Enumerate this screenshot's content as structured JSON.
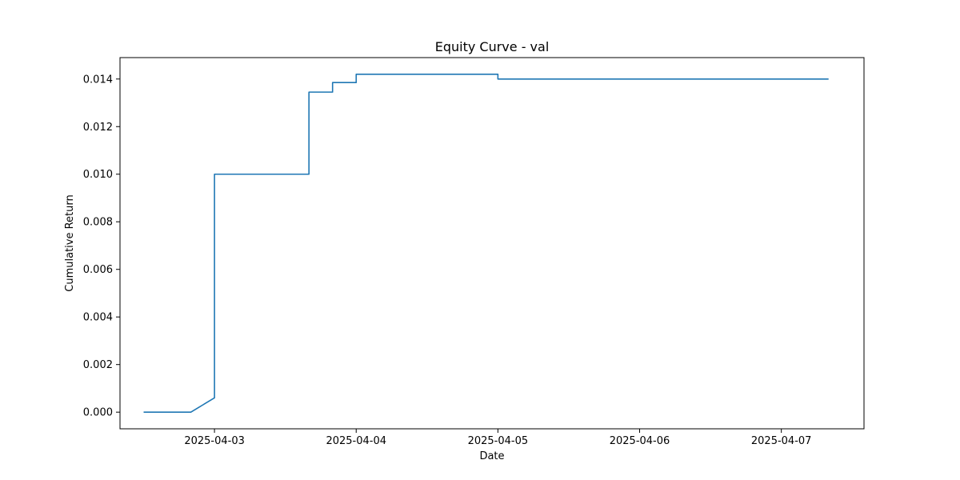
{
  "chart_data": {
    "type": "line",
    "title": "Equity Curve - val",
    "xlabel": "Date",
    "ylabel": "Cumulative Return",
    "x_tick_labels": [
      "2025-04-03",
      "2025-04-04",
      "2025-04-05",
      "2025-04-06",
      "2025-04-07"
    ],
    "y_tick_labels": [
      "0.000",
      "0.002",
      "0.004",
      "0.006",
      "0.008",
      "0.010",
      "0.012",
      "0.014"
    ],
    "x_ticks": [
      "2025-04-03T00:00",
      "2025-04-04T00:00",
      "2025-04-05T00:00",
      "2025-04-06T00:00",
      "2025-04-07T00:00"
    ],
    "y_ticks": [
      0.0,
      0.002,
      0.004,
      0.006,
      0.008,
      0.01,
      0.012,
      0.014
    ],
    "xlim": [
      "2025-04-02T08:00",
      "2025-04-07T14:00"
    ],
    "ylim": [
      -0.0007,
      0.0149
    ],
    "grid": false,
    "series": [
      {
        "color": "#1f77b4",
        "x": [
          "2025-04-02T12:00",
          "2025-04-02T20:00",
          "2025-04-03T00:00",
          "2025-04-03T00:00",
          "2025-04-03T04:00",
          "2025-04-03T08:00",
          "2025-04-03T12:00",
          "2025-04-03T16:00",
          "2025-04-03T16:00",
          "2025-04-03T20:00",
          "2025-04-03T20:00",
          "2025-04-04T00:00",
          "2025-04-04T00:00",
          "2025-04-04T04:00",
          "2025-04-04T08:00",
          "2025-04-04T12:00",
          "2025-04-04T16:00",
          "2025-04-04T20:00",
          "2025-04-05T00:00",
          "2025-04-05T00:00",
          "2025-04-05T12:00",
          "2025-04-06T00:00",
          "2025-04-06T12:00",
          "2025-04-07T00:00",
          "2025-04-07T08:00"
        ],
        "y": [
          0.0,
          0.0,
          0.0006,
          0.01,
          0.01,
          0.01,
          0.01,
          0.01,
          0.01345,
          0.01345,
          0.01385,
          0.01385,
          0.0142,
          0.0142,
          0.0142,
          0.0142,
          0.0142,
          0.0142,
          0.0142,
          0.014,
          0.014,
          0.014,
          0.014,
          0.014,
          0.014
        ]
      }
    ]
  }
}
